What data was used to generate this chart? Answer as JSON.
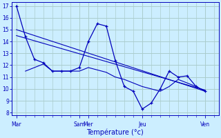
{
  "xlabel": "Température (°c)",
  "background_color": "#cceeff",
  "line_color": "#0000bb",
  "grid_color": "#aacccc",
  "yticks": [
    8,
    9,
    10,
    11,
    12,
    13,
    14,
    15,
    16,
    17
  ],
  "ylim": [
    7.8,
    17.3
  ],
  "xlim": [
    -0.5,
    22.5
  ],
  "xtick_positions": [
    0,
    7,
    8,
    14,
    21
  ],
  "xtick_labels": [
    "Mar",
    "Sam",
    "Mer",
    "Jeu",
    "Ven"
  ],
  "series_main": [
    17.0,
    14.4,
    12.5,
    12.2,
    11.5,
    11.5,
    11.5,
    11.8,
    14.0,
    15.5,
    15.3,
    12.4,
    10.2,
    9.8,
    8.3,
    8.8,
    10.0,
    11.5,
    11.0,
    11.1,
    10.2,
    9.8
  ],
  "series_lines": [
    {
      "x": [
        0,
        21
      ],
      "y": [
        15.0,
        9.8
      ]
    },
    {
      "x": [
        0,
        21
      ],
      "y": [
        14.5,
        9.9
      ]
    },
    {
      "x": [
        1,
        2,
        3,
        4,
        5,
        6,
        7,
        8,
        9,
        10,
        11,
        12,
        13,
        14,
        15,
        16,
        17,
        18,
        19,
        20,
        21
      ],
      "y": [
        11.5,
        11.8,
        12.1,
        11.5,
        11.5,
        11.5,
        11.5,
        11.8,
        11.6,
        11.4,
        11.0,
        10.8,
        10.5,
        10.2,
        10.0,
        9.8,
        10.2,
        10.8,
        10.5,
        10.2,
        9.8
      ]
    }
  ]
}
